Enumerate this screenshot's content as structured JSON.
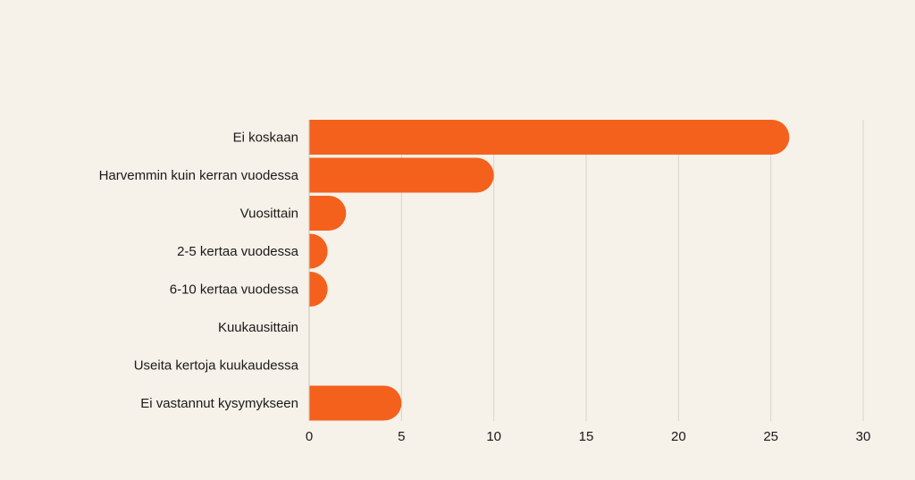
{
  "chart_data": {
    "type": "bar",
    "orientation": "horizontal",
    "title": "",
    "xlabel": "",
    "ylabel": "",
    "categories": [
      "Ei koskaan",
      "Harvemmin kuin kerran vuodessa",
      "Vuosittain",
      "2-5 kertaa vuodessa",
      "6-10 kertaa vuodessa",
      "Kuukausittain",
      "Useita kertoja kuukaudessa",
      "Ei vastannut kysymykseen"
    ],
    "values": [
      26,
      10,
      2,
      1,
      1,
      0,
      0,
      5
    ],
    "xlim": [
      0,
      30
    ],
    "xticks": [
      0,
      5,
      10,
      15,
      20,
      25,
      30
    ],
    "xtick_labels": [
      "0",
      "5",
      "10",
      "15",
      "20",
      "25",
      "30"
    ],
    "grid": "vertical",
    "legend": "none",
    "bar_color": "#f4611c",
    "background_color": "#f6f1e9"
  }
}
